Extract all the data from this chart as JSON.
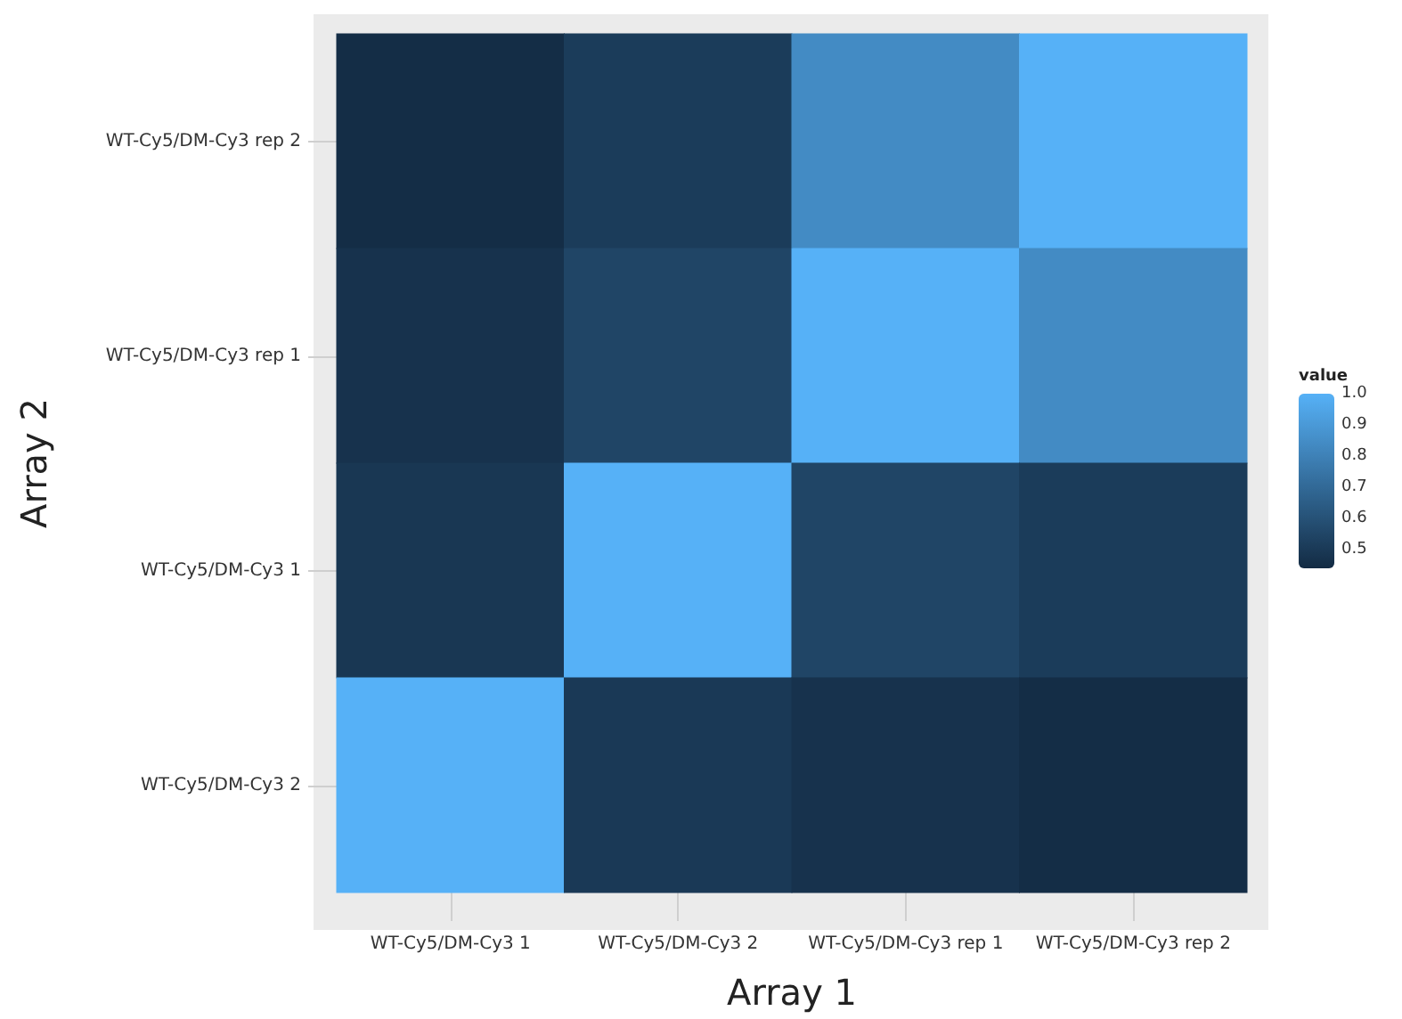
{
  "chart_data": {
    "type": "heatmap",
    "xlabel": "Array 1",
    "ylabel": "Array 2",
    "clabel": "value",
    "categories": [
      "WT-Cy5/DM-Cy3 1",
      "WT-Cy5/DM-Cy3 2",
      "WT-Cy5/DM-Cy3 rep 1",
      "WT-Cy5/DM-Cy3 rep 2"
    ],
    "y_categories": [
      "WT-Cy5/DM-Cy3 rep 2",
      "WT-Cy5/DM-Cy3 rep 1",
      "WT-Cy5/DM-Cy3 1",
      "WT-Cy5/DM-Cy3 2"
    ],
    "cells": [
      [
        0.45,
        0.51,
        0.84,
        1
      ],
      [
        0.47,
        0.55,
        1,
        0.84
      ],
      [
        0.49,
        1,
        0.55,
        0.51
      ],
      [
        1,
        0.5,
        0.47,
        0.45
      ]
    ],
    "clim": [
      0.44,
      1
    ],
    "cticks": [
      0.5,
      0.6,
      0.7,
      0.8,
      0.9,
      {
        "value": 1,
        "label": "1.0"
      }
    ]
  }
}
